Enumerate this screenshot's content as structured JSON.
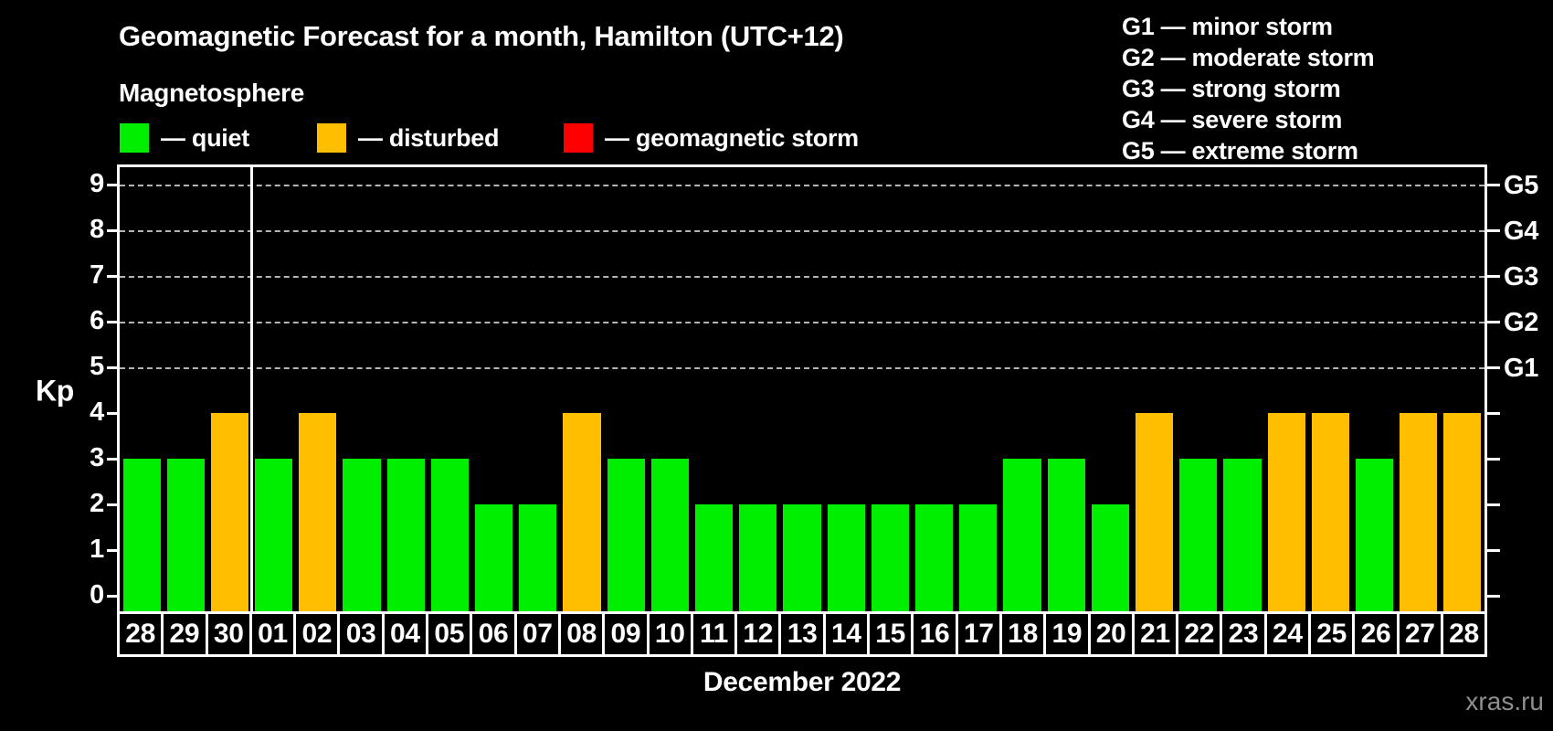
{
  "title": "Geomagnetic Forecast for a month, Hamilton (UTC+12)",
  "subtitle": "Magnetosphere",
  "legend": {
    "items": [
      {
        "key": "quiet",
        "label": "— quiet",
        "color": "#00ee00"
      },
      {
        "key": "disturbed",
        "label": "— disturbed",
        "color": "#ffbe00"
      },
      {
        "key": "storm",
        "label": "— geomagnetic storm",
        "color": "#ff0000"
      }
    ]
  },
  "g_scale_legend": [
    "G1 — minor storm",
    "G2 — moderate storm",
    "G3 — strong storm",
    "G4 — severe storm",
    "G5 — extreme storm"
  ],
  "watermark": "xras.ru",
  "chart_data": {
    "type": "bar",
    "title": "Geomagnetic Forecast for a month, Hamilton (UTC+12)",
    "xlabel": "December 2022",
    "ylabel": "Kp",
    "ylim": [
      0,
      9.6
    ],
    "yticks": [
      0,
      1,
      2,
      3,
      4,
      5,
      6,
      7,
      8,
      9
    ],
    "gridlines_at": [
      5,
      6,
      7,
      8,
      9
    ],
    "grid": "dashed, only at storm levels G1–G5",
    "legend_position": "top",
    "right_axis": [
      {
        "kp": 5,
        "label": "G1"
      },
      {
        "kp": 6,
        "label": "G2"
      },
      {
        "kp": 7,
        "label": "G3"
      },
      {
        "kp": 8,
        "label": "G4"
      },
      {
        "kp": 9,
        "label": "G5"
      }
    ],
    "month_separator_after_index": 2,
    "categories": [
      "28",
      "29",
      "30",
      "01",
      "02",
      "03",
      "04",
      "05",
      "06",
      "07",
      "08",
      "09",
      "10",
      "11",
      "12",
      "13",
      "14",
      "15",
      "16",
      "17",
      "18",
      "19",
      "20",
      "21",
      "22",
      "23",
      "24",
      "25",
      "26",
      "27",
      "28"
    ],
    "values": [
      3,
      3,
      4,
      3,
      4,
      3,
      3,
      3,
      2,
      2,
      4,
      3,
      3,
      2,
      2,
      2,
      2,
      2,
      2,
      2,
      3,
      3,
      2,
      4,
      3,
      3,
      4,
      4,
      3,
      4,
      4
    ],
    "statuses": [
      "quiet",
      "quiet",
      "disturbed",
      "quiet",
      "disturbed",
      "quiet",
      "quiet",
      "quiet",
      "quiet",
      "quiet",
      "disturbed",
      "quiet",
      "quiet",
      "quiet",
      "quiet",
      "quiet",
      "quiet",
      "quiet",
      "quiet",
      "quiet",
      "quiet",
      "quiet",
      "quiet",
      "disturbed",
      "quiet",
      "quiet",
      "disturbed",
      "disturbed",
      "quiet",
      "disturbed",
      "disturbed"
    ],
    "colors": {
      "quiet": "#00ee00",
      "disturbed": "#ffbe00",
      "storm": "#ff0000"
    }
  }
}
